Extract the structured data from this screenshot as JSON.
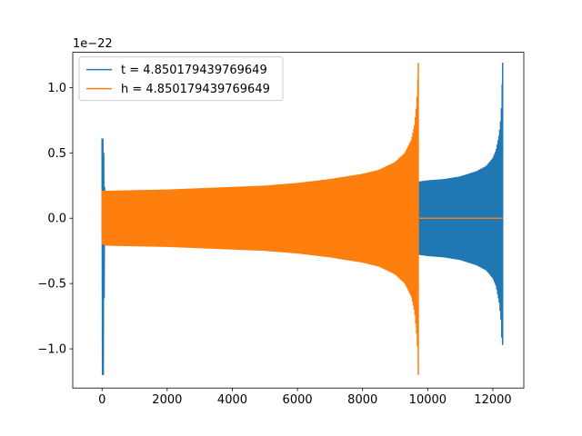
{
  "chart_data": {
    "type": "line",
    "title": "",
    "xlabel": "",
    "ylabel": "",
    "y_offset_label": "1e−22",
    "xlim": [
      -900,
      12950
    ],
    "ylim": [
      -1.3,
      1.27
    ],
    "x_ticks": [
      {
        "value": 0,
        "label": "0"
      },
      {
        "value": 2000,
        "label": "2000"
      },
      {
        "value": 4000,
        "label": "4000"
      },
      {
        "value": 6000,
        "label": "6000"
      },
      {
        "value": 8000,
        "label": "8000"
      },
      {
        "value": 10000,
        "label": "10000"
      },
      {
        "value": 12000,
        "label": "12000"
      }
    ],
    "y_ticks": [
      {
        "value": -1.0,
        "label": "−1.0"
      },
      {
        "value": -0.5,
        "label": "−0.5"
      },
      {
        "value": 0.0,
        "label": "0.0"
      },
      {
        "value": 0.5,
        "label": "0.5"
      },
      {
        "value": 1.0,
        "label": "1.0"
      }
    ],
    "grid": false,
    "legend_position": "upper-left",
    "series": [
      {
        "name": "t = 4.850179439769649",
        "color": "#1f77b4",
        "envelope": {
          "x": [
            0,
            40,
            80,
            1000,
            3000,
            5000,
            7000,
            9000,
            9700,
            10000,
            10500,
            11000,
            11500,
            11800,
            12000,
            12100,
            12200,
            12250,
            12280,
            12300
          ],
          "upper": [
            0.61,
            0.61,
            0.2,
            0.21,
            0.22,
            0.23,
            0.24,
            0.26,
            0.28,
            0.29,
            0.3,
            0.32,
            0.36,
            0.4,
            0.46,
            0.52,
            0.65,
            0.78,
            0.95,
            1.19
          ],
          "lower": [
            -1.2,
            -1.2,
            -0.2,
            -0.21,
            -0.22,
            -0.23,
            -0.24,
            -0.26,
            -0.28,
            -0.29,
            -0.3,
            -0.32,
            -0.36,
            -0.4,
            -0.46,
            -0.52,
            -0.65,
            -0.78,
            -0.95,
            -0.97
          ]
        },
        "flat_after_end": true
      },
      {
        "name": "h = 4.850179439769649",
        "color": "#ff7f0e",
        "envelope": {
          "x": [
            0,
            100,
            1000,
            2000,
            3000,
            4000,
            5000,
            6000,
            7000,
            8000,
            8500,
            9000,
            9300,
            9500,
            9600,
            9650,
            9690,
            9710
          ],
          "upper": [
            0.21,
            0.21,
            0.215,
            0.22,
            0.23,
            0.24,
            0.25,
            0.27,
            0.3,
            0.34,
            0.37,
            0.43,
            0.5,
            0.6,
            0.72,
            0.85,
            1.0,
            1.19
          ],
          "lower": [
            -0.2,
            -0.21,
            -0.215,
            -0.22,
            -0.23,
            -0.24,
            -0.25,
            -0.27,
            -0.3,
            -0.34,
            -0.37,
            -0.43,
            -0.5,
            -0.6,
            -0.72,
            -0.85,
            -1.0,
            -1.2
          ]
        },
        "flat_after_end": true,
        "flat_until_x": 12300
      }
    ]
  }
}
